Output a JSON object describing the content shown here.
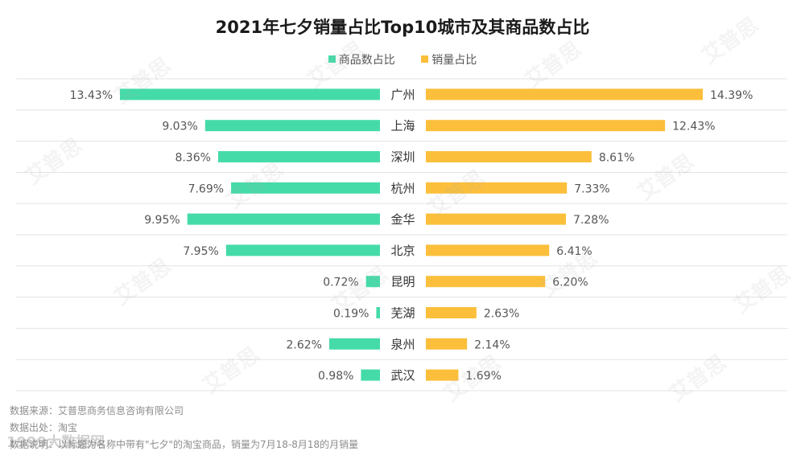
{
  "chart_data": {
    "type": "bar",
    "title": "2021年七夕销量占比Top10城市及其商品数占比",
    "categories": [
      "广州",
      "上海",
      "深圳",
      "杭州",
      "金华",
      "北京",
      "昆明",
      "芜湖",
      "泉州",
      "武汉"
    ],
    "series": [
      {
        "name": "商品数占比",
        "color": "#45dba9",
        "values": [
          13.43,
          9.03,
          8.36,
          7.69,
          9.95,
          7.95,
          0.72,
          0.19,
          2.62,
          0.98
        ],
        "labels": [
          "13.43%",
          "9.03%",
          "8.36%",
          "7.69%",
          "9.95%",
          "7.95%",
          "0.72%",
          "0.19%",
          "2.62%",
          "0.98%"
        ]
      },
      {
        "name": "销量占比",
        "color": "#fbbf3b",
        "values": [
          14.39,
          12.43,
          8.61,
          7.33,
          7.28,
          6.41,
          6.2,
          2.63,
          2.14,
          1.69
        ],
        "labels": [
          "14.39%",
          "12.43%",
          "8.61%",
          "7.33%",
          "7.28%",
          "6.41%",
          "6.20%",
          "2.63%",
          "2.14%",
          "1.69%"
        ]
      }
    ],
    "legend_position": "top-center",
    "grid": true
  },
  "footer": {
    "source": "数据来源：艾普思商务信息咨询有限公司",
    "origin": "数据出处：淘宝",
    "note": "数据说明：以标题为名称中带有\"七夕\"的淘宝商品，销量为7月18-8月18的月销量"
  },
  "watermark": "艾普思",
  "corner_watermark": "1999大数据网"
}
